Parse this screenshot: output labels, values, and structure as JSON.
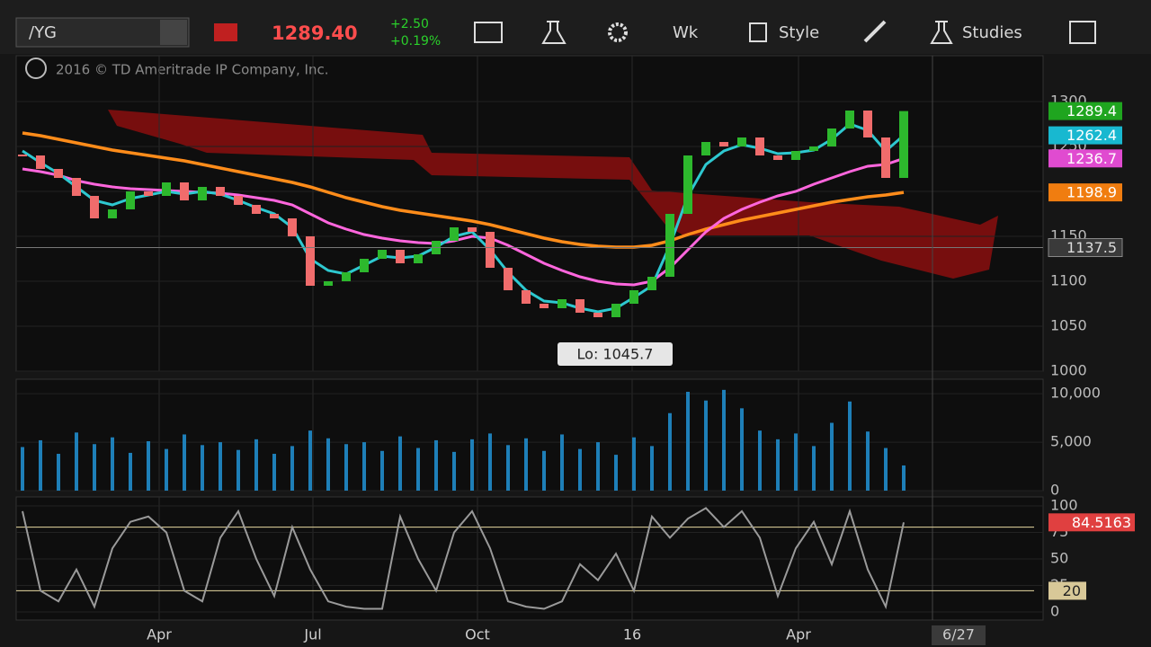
{
  "toolbar": {
    "symbol": "/YG",
    "price": "1289.40",
    "change": "+2.50",
    "change_pct": "+0.19%",
    "buttons": [
      "Wk",
      "Style",
      "Studies"
    ]
  },
  "copyright": "2016 © TD Ameritrade IP Company, Inc.",
  "chart_data": [
    {
      "type": "candlestick",
      "xlim": [
        -0.35,
        56.75
      ],
      "ylim": [
        1000,
        1351
      ],
      "yticks": [
        1000,
        1050,
        1100,
        1150,
        1200,
        1250,
        1300
      ],
      "xticks": [
        {
          "value": 7.6,
          "label": "Apr"
        },
        {
          "value": 16.15,
          "label": "Jul"
        },
        {
          "value": 25.3,
          "label": "Oct"
        },
        {
          "value": 33.9,
          "label": "16"
        },
        {
          "value": 43.15,
          "label": "Apr"
        }
      ],
      "up_color": "#2db82d",
      "down_color": "#f06c6c",
      "closes": [
        1240,
        1225,
        1215,
        1195,
        1170,
        1180,
        1200,
        1195,
        1210,
        1190,
        1205,
        1195,
        1185,
        1175,
        1170,
        1150,
        1095,
        1100,
        1110,
        1125,
        1135,
        1120,
        1130,
        1145,
        1160,
        1155,
        1115,
        1090,
        1075,
        1070,
        1080,
        1065,
        1060,
        1075,
        1090,
        1105,
        1175,
        1240,
        1255,
        1250,
        1260,
        1240,
        1235,
        1245,
        1250,
        1270,
        1290,
        1260,
        1215,
        1289.4
      ],
      "series": [
        {
          "color": "#ff8c1a",
          "values": [
            1265,
            1262,
            1258,
            1254,
            1250,
            1246,
            1243,
            1240,
            1237,
            1234,
            1230,
            1226,
            1222,
            1218,
            1214,
            1210,
            1205,
            1199,
            1193,
            1188,
            1183,
            1179,
            1176,
            1173,
            1170,
            1167,
            1163,
            1158,
            1153,
            1148,
            1144,
            1141,
            1139,
            1138,
            1138,
            1140,
            1145,
            1152,
            1158,
            1163,
            1168,
            1172,
            1176,
            1180,
            1184,
            1188,
            1191,
            1194,
            1196,
            1198.9
          ]
        },
        {
          "color": "#ff66dd",
          "values": [
            1225,
            1222,
            1218,
            1212,
            1208,
            1205,
            1203,
            1202,
            1201,
            1200,
            1199,
            1198,
            1196,
            1193,
            1190,
            1185,
            1175,
            1165,
            1158,
            1152,
            1148,
            1145,
            1143,
            1142,
            1145,
            1150,
            1148,
            1140,
            1130,
            1120,
            1112,
            1105,
            1100,
            1097,
            1096,
            1100,
            1115,
            1135,
            1155,
            1170,
            1180,
            1188,
            1195,
            1200,
            1208,
            1215,
            1222,
            1228,
            1230,
            1236.7
          ]
        },
        {
          "color": "#2ec8d0",
          "values": [
            1245,
            1232,
            1220,
            1205,
            1190,
            1185,
            1192,
            1196,
            1200,
            1197,
            1200,
            1197,
            1190,
            1182,
            1175,
            1160,
            1125,
            1112,
            1108,
            1118,
            1128,
            1126,
            1128,
            1138,
            1150,
            1155,
            1135,
            1110,
            1090,
            1078,
            1076,
            1070,
            1066,
            1070,
            1082,
            1095,
            1140,
            1195,
            1230,
            1245,
            1252,
            1248,
            1242,
            1243,
            1246,
            1258,
            1275,
            1268,
            1245,
            1262.4
          ]
        }
      ],
      "price_tags": [
        {
          "value": 1289.4,
          "color": "#1fa51f"
        },
        {
          "value": 1262.4,
          "color": "#18b8d0"
        },
        {
          "value": 1236.7,
          "color": "#e04bd0"
        },
        {
          "value": 1198.9,
          "color": "#f07d10"
        }
      ],
      "crosshair": 1137.5,
      "cursor_date": "6/27",
      "annotation": "Lo: 1045.7"
    },
    {
      "type": "bar",
      "ylim": [
        0,
        11500
      ],
      "yticks": [
        0,
        {
          "value": 5000,
          "label": "5,000"
        },
        {
          "value": 10000,
          "label": "10,000"
        }
      ],
      "color": "#1e7fb8",
      "values": [
        4500,
        5200,
        3800,
        6000,
        4800,
        5500,
        3900,
        5100,
        4300,
        5800,
        4700,
        5000,
        4200,
        5300,
        3800,
        4600,
        6200,
        5400,
        4800,
        5000,
        4100,
        5600,
        4400,
        5200,
        4000,
        5300,
        5900,
        4700,
        5400,
        4100,
        5800,
        4300,
        5000,
        3700,
        5500,
        4600,
        8000,
        10200,
        9300,
        10400,
        8500,
        6200,
        5300,
        5900,
        4600,
        7000,
        9200,
        6100,
        4400,
        2600
      ]
    },
    {
      "type": "line",
      "ylim": [
        -7.6,
        108.5
      ],
      "yticks": [
        0,
        25,
        50,
        75,
        100
      ],
      "color": "#9a9a9a",
      "levels": [
        80,
        20
      ],
      "level_color": "#e8d9a0",
      "values": [
        95,
        20,
        10,
        40,
        5,
        60,
        85,
        90,
        75,
        20,
        10,
        70,
        95,
        50,
        15,
        80,
        40,
        10,
        5,
        3,
        3,
        90,
        50,
        20,
        75,
        95,
        60,
        10,
        5,
        3,
        10,
        45,
        30,
        55,
        20,
        90,
        70,
        88,
        98,
        80,
        95,
        70,
        15,
        60,
        85,
        45,
        95,
        40,
        5,
        84.5163
      ],
      "tags": [
        84.5163,
        20
      ]
    }
  ]
}
